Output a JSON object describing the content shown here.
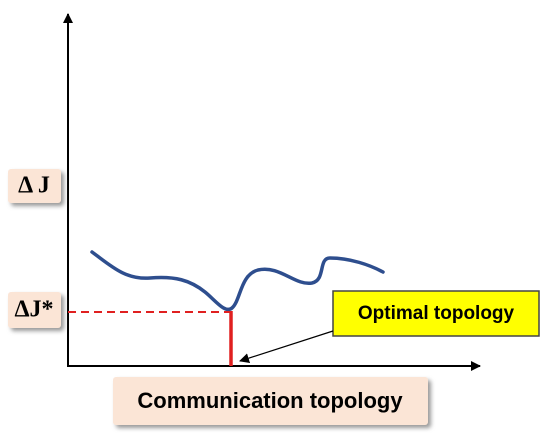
{
  "y_labels": {
    "delta_j": "Δ J",
    "delta_j_star": "ΔJ*"
  },
  "annotation": "Optimal topology",
  "x_label": "Communication topology"
}
